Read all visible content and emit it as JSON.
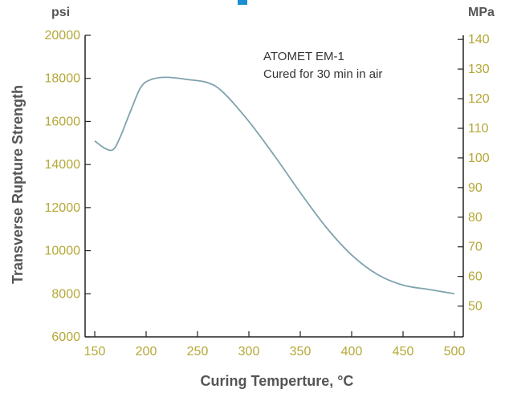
{
  "chart_data": {
    "type": "line",
    "title": "",
    "xlabel": "Curing Temperture, °C",
    "ylabel": "Transverse Rupture Strength",
    "y_left_unit": "psi",
    "y_right_unit": "MPa",
    "xlim": [
      150,
      500
    ],
    "ylim": [
      6000,
      20000
    ],
    "y2lim": [
      39.6,
      141.4
    ],
    "x_ticks": [
      150,
      200,
      250,
      300,
      350,
      400,
      450,
      500
    ],
    "y_ticks": [
      6000,
      8000,
      10000,
      12000,
      14000,
      16000,
      18000,
      20000
    ],
    "y2_ticks": [
      50,
      60,
      70,
      80,
      90,
      100,
      110,
      120,
      130,
      140
    ],
    "grid": false,
    "annotations": [
      "ATOMET EM-1",
      "Cured for 30 min in air"
    ],
    "series": [
      {
        "x": [
          150,
          160,
          168,
          175,
          185,
          195,
          205,
          220,
          240,
          260,
          275,
          300,
          325,
          350,
          375,
          400,
          425,
          450,
          475,
          500
        ],
        "values": [
          15100,
          14750,
          14700,
          15300,
          16500,
          17600,
          17950,
          18050,
          17950,
          17800,
          17350,
          16000,
          14400,
          12700,
          11100,
          9800,
          8900,
          8400,
          8200,
          8000
        ]
      }
    ],
    "colors": {
      "line": "#7fa3ae",
      "ticks": "#b5a838",
      "labels": "#555555"
    }
  }
}
